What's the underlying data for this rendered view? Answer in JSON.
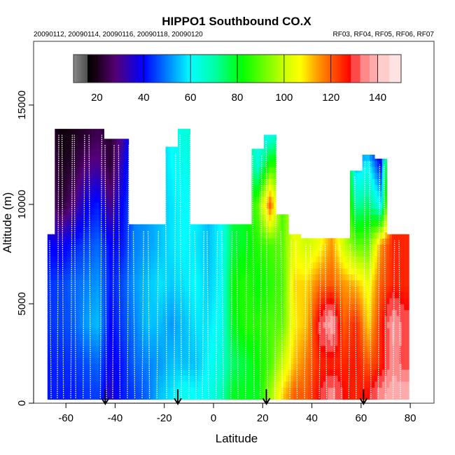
{
  "chart_data": {
    "type": "heatmap",
    "title": "HIPPO1 Southbound CO.X",
    "subtitle_left": "20090112, 20090114, 20090116, 20090118, 20090120",
    "subtitle_right": "RF03, RF04, RF05, RF06, RF07",
    "xlabel": "Latitude",
    "ylabel": "Altitude (m)",
    "xlim": [
      -72.7,
      90
    ],
    "ylim": [
      0,
      18200
    ],
    "x_ticks": [
      -60,
      -40,
      -20,
      0,
      20,
      40,
      60,
      80
    ],
    "x_tick_labels": [
      "-60",
      "-40",
      "-20",
      "0",
      "20",
      "40",
      "60",
      "80"
    ],
    "y_ticks": [
      0,
      5000,
      10000,
      15000
    ],
    "y_tick_labels": [
      "0",
      "5000",
      "10000",
      "15000"
    ],
    "colorbar": {
      "range": [
        10,
        150
      ],
      "ticks": [
        20,
        40,
        60,
        80,
        100,
        120,
        140
      ],
      "tick_labels": [
        "20",
        "40",
        "60",
        "80",
        "100",
        "120",
        "140"
      ],
      "placement": "top"
    },
    "grid_lat": [
      -67,
      -62,
      -57,
      -52,
      -47,
      -42,
      -37,
      -32,
      -27,
      -22,
      -17,
      -12,
      -7,
      -2,
      3,
      8,
      13,
      18,
      23,
      28,
      33,
      38,
      43,
      48,
      53,
      58,
      63,
      68,
      73,
      78
    ],
    "grid_alt_m": [
      500,
      2000,
      4000,
      6000,
      8000,
      10000,
      12000,
      13500
    ],
    "top_alt_m": [
      8500,
      13800,
      13800,
      13800,
      13800,
      13300,
      13300,
      9000,
      9000,
      9000,
      12900,
      13800,
      9000,
      9000,
      9000,
      9000,
      9000,
      12800,
      13500,
      9500,
      8500,
      8300,
      8300,
      8300,
      8300,
      11700,
      12500,
      12300,
      8500,
      8500
    ],
    "values": [
      [
        42,
        42,
        44,
        44,
        40,
        30,
        28,
        25
      ],
      [
        42,
        43,
        45,
        45,
        38,
        22,
        20,
        18
      ],
      [
        42,
        44,
        47,
        48,
        42,
        28,
        22,
        20
      ],
      [
        44,
        46,
        52,
        50,
        45,
        38,
        28,
        22
      ],
      [
        45,
        48,
        55,
        52,
        48,
        42,
        30,
        25
      ],
      [
        35,
        38,
        40,
        42,
        40,
        30,
        22,
        22
      ],
      [
        42,
        42,
        45,
        46,
        42,
        40,
        35,
        30
      ],
      [
        45,
        48,
        50,
        52,
        50,
        50,
        50,
        50
      ],
      [
        48,
        50,
        55,
        55,
        52,
        52,
        52,
        52
      ],
      [
        55,
        52,
        55,
        58,
        55,
        55,
        55,
        55
      ],
      [
        58,
        55,
        52,
        56,
        58,
        58,
        60,
        60
      ],
      [
        62,
        55,
        55,
        58,
        60,
        60,
        62,
        64
      ],
      [
        60,
        55,
        58,
        60,
        58,
        60,
        64,
        64
      ],
      [
        62,
        60,
        58,
        56,
        55,
        55,
        55,
        55
      ],
      [
        68,
        65,
        62,
        60,
        60,
        60,
        60,
        60
      ],
      [
        80,
        75,
        80,
        82,
        78,
        78,
        78,
        78
      ],
      [
        80,
        78,
        85,
        85,
        80,
        80,
        80,
        80
      ],
      [
        80,
        82,
        85,
        82,
        85,
        90,
        65,
        60
      ],
      [
        95,
        88,
        88,
        85,
        88,
        120,
        85,
        62
      ],
      [
        110,
        100,
        90,
        88,
        90,
        88,
        85,
        70
      ],
      [
        120,
        112,
        108,
        110,
        105,
        105,
        105,
        105
      ],
      [
        120,
        118,
        112,
        110,
        100,
        100,
        100,
        100
      ],
      [
        128,
        125,
        130,
        118,
        105,
        105,
        105,
        105
      ],
      [
        135,
        125,
        140,
        120,
        115,
        115,
        115,
        115
      ],
      [
        128,
        125,
        120,
        115,
        100,
        100,
        100,
        100
      ],
      [
        125,
        127,
        125,
        112,
        90,
        70,
        55,
        45
      ],
      [
        128,
        120,
        110,
        105,
        90,
        75,
        60,
        40
      ],
      [
        135,
        125,
        125,
        120,
        115,
        60,
        40,
        30
      ],
      [
        140,
        135,
        138,
        125,
        125,
        125,
        125,
        125
      ],
      [
        140,
        130,
        130,
        125,
        125,
        125,
        125,
        125
      ]
    ],
    "flight_profile_lats": [
      -66,
      -63.5,
      -61,
      -58,
      -56,
      -53,
      -50,
      -46,
      -43.5,
      -41,
      -38,
      -35,
      -32,
      -29,
      -26,
      -23,
      -19,
      -16,
      -13,
      -10,
      -7,
      -4.5,
      -2,
      1,
      4,
      7,
      10,
      13,
      16.5,
      19,
      22,
      25,
      28,
      31,
      34,
      37,
      40,
      43,
      46,
      49,
      52,
      55,
      58,
      61,
      64,
      67,
      70,
      73,
      76
    ],
    "arrow_lats": [
      -44,
      -14.5,
      21.5,
      61
    ]
  }
}
